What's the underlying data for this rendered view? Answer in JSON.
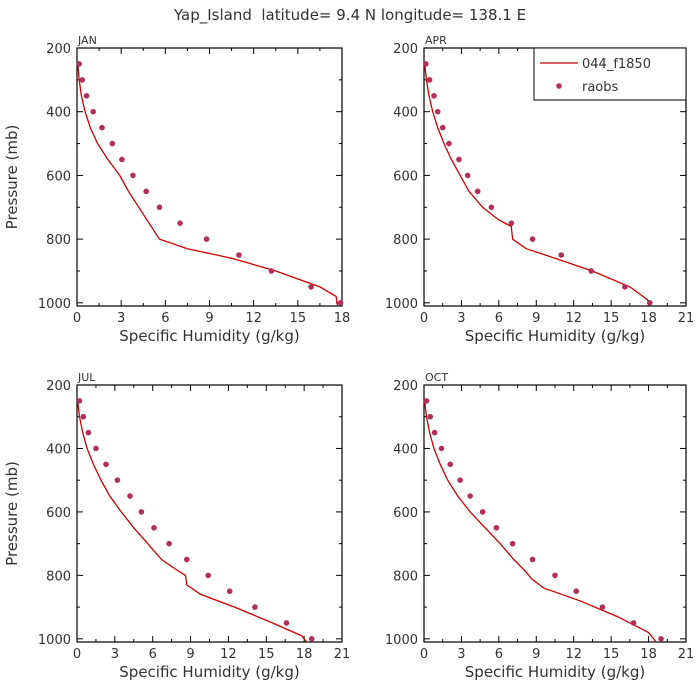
{
  "title": "Yap_Island  latitude= 9.4 N longitude= 138.1 E",
  "legend": {
    "model_label": "044_f1850",
    "obs_label": "raobs",
    "placement": "top-right of APR panel"
  },
  "colors": {
    "model_line": "#cc0000",
    "obs_marker": "#b0305a",
    "axis": "#000000",
    "text": "#333333"
  },
  "chart_data": [
    {
      "type": "line",
      "panel": "JAN",
      "xlabel": "Specific Humidity (g/kg)",
      "ylabel": "Pressure (mb)",
      "xlim": [
        0,
        18
      ],
      "ylim": [
        1010,
        200
      ],
      "xticks": [
        0,
        3,
        6,
        9,
        12,
        15,
        18
      ],
      "yticks": [
        200,
        400,
        600,
        800,
        1000
      ],
      "series": [
        {
          "name": "044_f1850",
          "kind": "line",
          "x": [
            0.05,
            0.15,
            0.3,
            0.55,
            0.9,
            1.4,
            2.1,
            2.9,
            3.5,
            4.2,
            4.9,
            5.6,
            7.5,
            10.5,
            13.5,
            16.5,
            17.6,
            17.7
          ],
          "y": [
            250,
            300,
            350,
            400,
            450,
            500,
            550,
            600,
            650,
            700,
            750,
            800,
            830,
            860,
            900,
            950,
            980,
            1010
          ]
        },
        {
          "name": "raobs",
          "kind": "scatter",
          "x": [
            0.15,
            0.35,
            0.65,
            1.1,
            1.7,
            2.4,
            3.05,
            3.8,
            4.7,
            5.6,
            7.0,
            8.8,
            11.0,
            13.2,
            15.9,
            17.9
          ],
          "y": [
            250,
            300,
            350,
            400,
            450,
            500,
            550,
            600,
            650,
            700,
            750,
            800,
            850,
            900,
            950,
            1000
          ]
        }
      ]
    },
    {
      "type": "line",
      "panel": "APR",
      "xlabel": "Specific Humidity (g/kg)",
      "ylabel": "",
      "xlim": [
        0,
        21
      ],
      "ylim": [
        1010,
        200
      ],
      "xticks": [
        0,
        3,
        6,
        9,
        12,
        15,
        18,
        21
      ],
      "yticks": [
        200,
        400,
        600,
        800,
        1000
      ],
      "series": [
        {
          "name": "044_f1850",
          "kind": "line",
          "x": [
            0.05,
            0.2,
            0.4,
            0.7,
            1.1,
            1.6,
            2.2,
            2.9,
            3.6,
            4.7,
            6.0,
            7.0,
            7.1,
            8.2,
            10.5,
            13.5,
            16.5,
            17.9,
            18.1
          ],
          "y": [
            250,
            300,
            350,
            400,
            450,
            500,
            550,
            600,
            650,
            700,
            740,
            760,
            800,
            830,
            860,
            900,
            950,
            990,
            1010
          ]
        },
        {
          "name": "raobs",
          "kind": "scatter",
          "x": [
            0.15,
            0.45,
            0.8,
            1.1,
            1.5,
            2.0,
            2.8,
            3.5,
            4.3,
            5.4,
            7.0,
            8.7,
            11.0,
            13.4,
            16.1,
            18.1
          ],
          "y": [
            250,
            300,
            350,
            400,
            450,
            500,
            550,
            600,
            650,
            700,
            750,
            800,
            850,
            900,
            950,
            1000
          ]
        }
      ]
    },
    {
      "type": "line",
      "panel": "JUL",
      "xlabel": "Specific Humidity (g/kg)",
      "ylabel": "Pressure (mb)",
      "xlim": [
        0,
        21
      ],
      "ylim": [
        1010,
        200
      ],
      "xticks": [
        0,
        3,
        6,
        9,
        12,
        15,
        18,
        21
      ],
      "yticks": [
        200,
        400,
        600,
        800,
        1000
      ],
      "series": [
        {
          "name": "044_f1850",
          "kind": "line",
          "x": [
            0.05,
            0.2,
            0.45,
            0.8,
            1.3,
            1.9,
            2.6,
            3.5,
            4.5,
            5.6,
            6.7,
            7.8,
            8.6,
            8.7,
            9.8,
            12.5,
            15.5,
            17.8,
            18.2
          ],
          "y": [
            250,
            300,
            350,
            400,
            450,
            500,
            550,
            600,
            650,
            700,
            750,
            780,
            800,
            830,
            860,
            900,
            950,
            990,
            1010
          ]
        },
        {
          "name": "raobs",
          "kind": "scatter",
          "x": [
            0.2,
            0.5,
            0.9,
            1.5,
            2.3,
            3.2,
            4.2,
            5.1,
            6.1,
            7.3,
            8.7,
            10.4,
            12.1,
            14.1,
            16.6,
            18.6
          ],
          "y": [
            250,
            300,
            350,
            400,
            450,
            500,
            550,
            600,
            650,
            700,
            750,
            800,
            850,
            900,
            950,
            1000
          ]
        }
      ]
    },
    {
      "type": "line",
      "panel": "OCT",
      "xlabel": "Specific Humidity (g/kg)",
      "ylabel": "",
      "xlim": [
        0,
        21
      ],
      "ylim": [
        1010,
        200
      ],
      "xticks": [
        0,
        3,
        6,
        9,
        12,
        15,
        18,
        21
      ],
      "yticks": [
        200,
        400,
        600,
        800,
        1000
      ],
      "series": [
        {
          "name": "044_f1850",
          "kind": "line",
          "x": [
            0.05,
            0.2,
            0.45,
            0.8,
            1.3,
            1.9,
            2.7,
            3.7,
            4.9,
            6.1,
            7.2,
            8.2,
            8.6,
            9.6,
            12.5,
            15.5,
            18.0,
            18.6
          ],
          "y": [
            250,
            300,
            350,
            400,
            450,
            500,
            550,
            600,
            650,
            700,
            750,
            790,
            810,
            840,
            880,
            930,
            980,
            1010
          ]
        },
        {
          "name": "raobs",
          "kind": "scatter",
          "x": [
            0.2,
            0.5,
            0.85,
            1.4,
            2.1,
            2.9,
            3.7,
            4.7,
            5.8,
            7.1,
            8.7,
            10.5,
            12.2,
            14.3,
            16.8,
            19.0
          ],
          "y": [
            250,
            300,
            350,
            400,
            450,
            500,
            550,
            600,
            650,
            700,
            750,
            800,
            850,
            900,
            950,
            1000
          ]
        }
      ]
    }
  ]
}
